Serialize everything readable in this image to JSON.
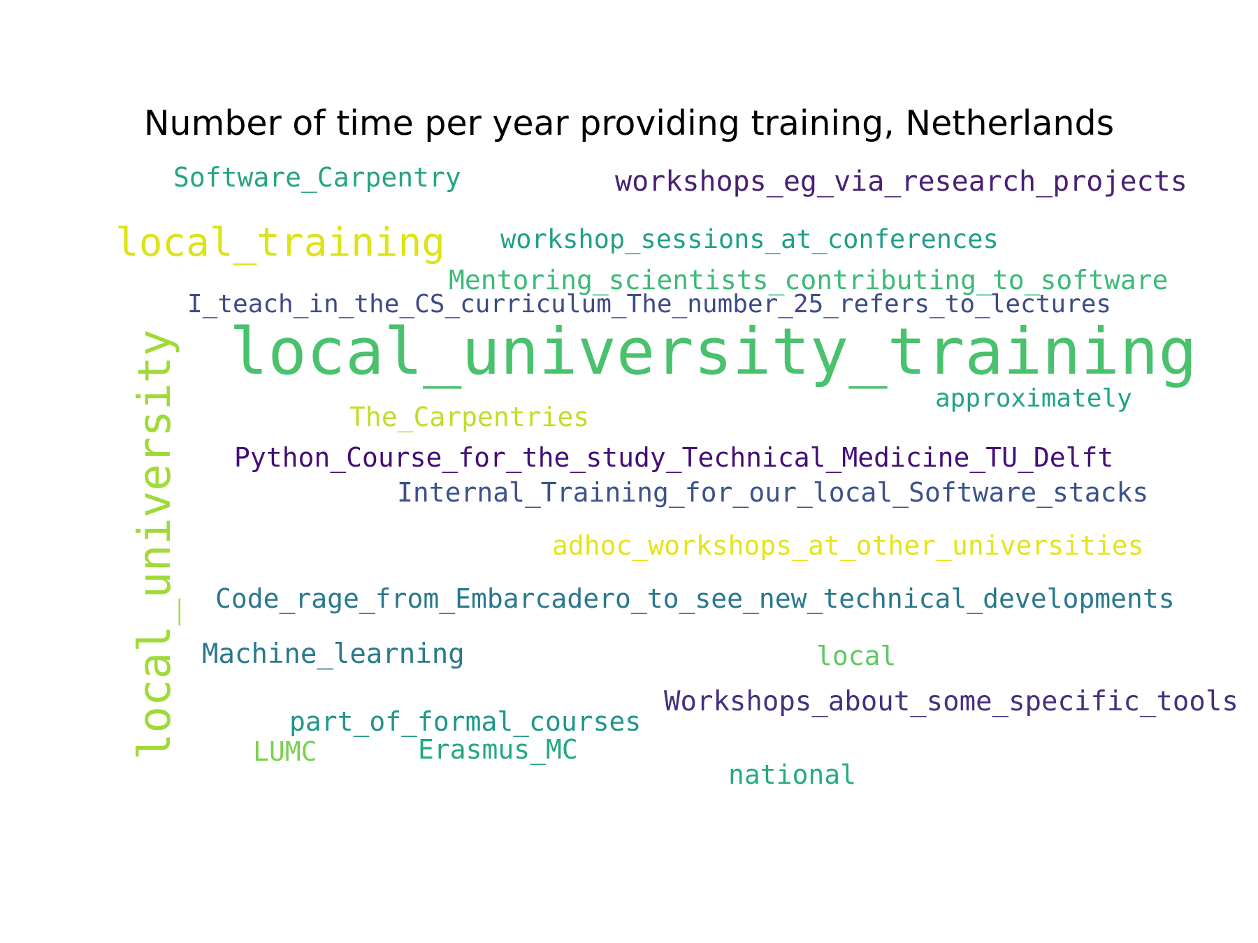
{
  "title": "Number of time per year providing training, Netherlands",
  "words": [
    {
      "key": "software_carpentry",
      "text": "Software_Carpentry",
      "color": "#26a483"
    },
    {
      "key": "workshops_eg",
      "text": "workshops_eg_via_research_projects",
      "color": "#482173"
    },
    {
      "key": "local_training",
      "text": "local_training",
      "color": "#dde318"
    },
    {
      "key": "workshop_sessions",
      "text": "workshop_sessions_at_conferences",
      "color": "#1fa088"
    },
    {
      "key": "mentoring",
      "text": "Mentoring_scientists_contributing_to_software",
      "color": "#3bbb75"
    },
    {
      "key": "i_teach",
      "text": "I_teach_in_the_CS_curriculum_The_number_25_refers_to_lectures",
      "color": "#3e4a89"
    },
    {
      "key": "local_university_training",
      "text": "local_university_training",
      "color": "#4ac16d"
    },
    {
      "key": "approximately",
      "text": "approximately",
      "color": "#20a386"
    },
    {
      "key": "the_carpentries",
      "text": "The_Carpentries",
      "color": "#bddf26"
    },
    {
      "key": "python_course",
      "text": "Python_Course_for_the_study_Technical_Medicine_TU_Delft",
      "color": "#440f76"
    },
    {
      "key": "internal_training",
      "text": "Internal_Training_for_our_local_Software_stacks",
      "color": "#3b528b"
    },
    {
      "key": "adhoc",
      "text": "adhoc_workshops_at_other_universities",
      "color": "#e5e419"
    },
    {
      "key": "code_rage",
      "text": "Code_rage_from_Embarcadero_to_see_new_technical_developments",
      "color": "#2a788e"
    },
    {
      "key": "machine_learning",
      "text": "Machine_learning",
      "color": "#29798e"
    },
    {
      "key": "local",
      "text": "local",
      "color": "#5ec962"
    },
    {
      "key": "workshops_tools",
      "text": "Workshops_about_some_specific_tools",
      "color": "#46307e"
    },
    {
      "key": "part_of_formal",
      "text": "part_of_formal_courses",
      "color": "#1f968b"
    },
    {
      "key": "lumc",
      "text": "LUMC",
      "color": "#7ad151"
    },
    {
      "key": "erasmus",
      "text": "Erasmus_MC",
      "color": "#22a884"
    },
    {
      "key": "national",
      "text": "national",
      "color": "#25ab82"
    },
    {
      "key": "local_university",
      "text": "local_university",
      "color": "#a0da39"
    }
  ]
}
